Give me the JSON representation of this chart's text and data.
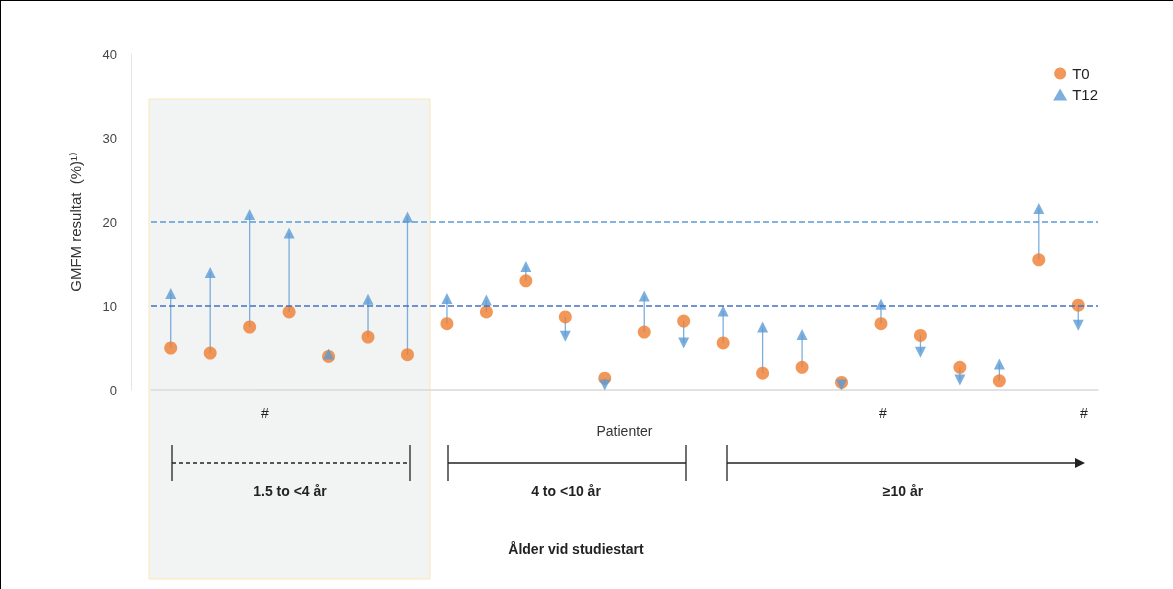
{
  "chart_data": {
    "type": "scatter",
    "ylabel": "GMFM resultat  (%)¹⁾",
    "xlabel": "Patienter",
    "categories": [
      null,
      null,
      null,
      null,
      null,
      null,
      null,
      null,
      null,
      null,
      null,
      null,
      null,
      null,
      null,
      null,
      null,
      null,
      null,
      null,
      null,
      null,
      null,
      null
    ],
    "series": [
      {
        "name": "T0",
        "color": "#ed7d31",
        "marker": "circle",
        "values": [
          5.0,
          4.4,
          7.5,
          9.3,
          4.0,
          6.3,
          4.2,
          7.9,
          9.3,
          13.0,
          8.7,
          1.4,
          6.9,
          8.2,
          5.6,
          2.0,
          2.7,
          0.9,
          7.9,
          6.5,
          2.7,
          1.1,
          15.5,
          10.1
        ]
      },
      {
        "name": "T12",
        "color": "#5b9bd5",
        "marker": "triangle",
        "values": [
          11.5,
          14.0,
          20.9,
          18.7,
          4.3,
          10.8,
          20.6,
          10.9,
          10.7,
          14.7,
          6.4,
          0.6,
          11.2,
          5.6,
          9.4,
          7.5,
          6.6,
          0.6,
          10.2,
          4.5,
          1.2,
          3.1,
          21.6,
          7.7
        ]
      }
    ],
    "ylim": [
      0,
      40
    ],
    "yticks": [
      0,
      10,
      20,
      30,
      40
    ],
    "grid": false,
    "legend": "top right",
    "ref_lines": [
      {
        "axis": "y",
        "value": 10,
        "color": "#4472c4",
        "line_style": "dashed"
      },
      {
        "axis": "y",
        "value": 20,
        "color": "#5b9bd5",
        "line_style": "dashed"
      }
    ],
    "annotations": [
      "#",
      "#",
      "#",
      "1.5 to <4 år",
      "4 to <10 år",
      "≥10 år",
      "Ålder vid studiestart"
    ]
  }
}
